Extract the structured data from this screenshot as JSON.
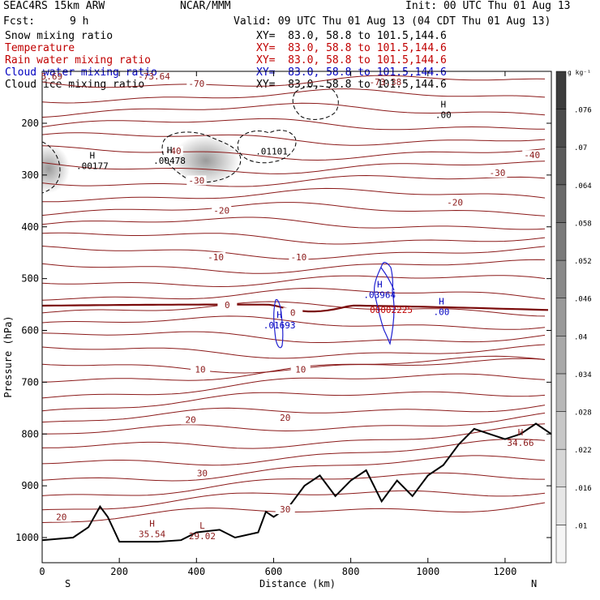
{
  "header": {
    "model": "SEAC4RS 15km ARW",
    "center": "NCAR/MMM",
    "init": "Init: 00 UTC Thu 01 Aug 13",
    "fcst_label": "Fcst:",
    "fcst_value": "9 h",
    "valid": "Valid: 09 UTC Thu 01 Aug 13 (04 CDT Thu 01 Aug 13)"
  },
  "fields": [
    {
      "name": "Snow mixing ratio",
      "xy": "XY=  83.0, 58.8 to 101.5,144.6",
      "color": "#000000"
    },
    {
      "name": "Temperature",
      "xy": "XY=  83.0, 58.8 to 101.5,144.6",
      "color": "#c00000"
    },
    {
      "name": "Rain water mixing ratio",
      "xy": "XY=  83.0, 58.8 to 101.5,144.6",
      "color": "#c00000"
    },
    {
      "name": "Cloud water mixing ratio",
      "xy": "XY=  83.0, 58.8 to 101.5,144.6",
      "color": "#0000c0"
    },
    {
      "name": "Cloud ice mixing ratio",
      "xy": "XY=  83.0, 58.8 to 101.5,144.6",
      "color": "#000000"
    }
  ],
  "colorbar": {
    "unit": "g kg⁻¹",
    "ticks": [
      ".01",
      ".016",
      ".022",
      ".028",
      ".034",
      ".04",
      ".046",
      ".052",
      ".058",
      ".064",
      ".07",
      ".076"
    ]
  },
  "chart_data": {
    "type": "contour",
    "xlabel": "Distance (km)",
    "ylabel": "Pressure (hPa)",
    "xlim": [
      0,
      1320
    ],
    "ylim": [
      1050,
      100
    ],
    "x_ticks": [
      0,
      200,
      400,
      600,
      800,
      1000,
      1200
    ],
    "y_ticks": [
      200,
      300,
      400,
      500,
      600,
      700,
      800,
      900,
      1000
    ],
    "x_end_labels": {
      "left": "S",
      "right": "N"
    },
    "temperature_contours": [
      {
        "label": "-70",
        "x": 400,
        "p": 128
      },
      {
        "label": "-40",
        "x": 1270,
        "p": 266
      },
      {
        "label": "-30",
        "x": 1180,
        "p": 300
      },
      {
        "label": "-20",
        "x": 1070,
        "p": 357
      },
      {
        "label": "-40",
        "x": 340,
        "p": 258
      },
      {
        "label": "-30",
        "x": 400,
        "p": 315
      },
      {
        "label": "-20",
        "x": 465,
        "p": 373
      },
      {
        "label": "-10",
        "x": 450,
        "p": 463
      },
      {
        "label": "-10",
        "x": 665,
        "p": 463
      },
      {
        "label": "0",
        "x": 480,
        "p": 555
      },
      {
        "label": "0",
        "x": 650,
        "p": 570
      },
      {
        "label": "10",
        "x": 410,
        "p": 680
      },
      {
        "label": "10",
        "x": 670,
        "p": 680
      },
      {
        "label": "20",
        "x": 385,
        "p": 777
      },
      {
        "label": "20",
        "x": 630,
        "p": 773
      },
      {
        "label": "30",
        "x": 415,
        "p": 880
      },
      {
        "label": "30",
        "x": 630,
        "p": 950
      },
      {
        "label": "20",
        "x": 50,
        "p": 965
      }
    ],
    "annotations": [
      {
        "mark": "H",
        "value": ".00177",
        "x": 130,
        "p": 285,
        "color": "#000000"
      },
      {
        "mark": "H",
        "value": ".00478",
        "x": 330,
        "p": 275,
        "color": "#000000"
      },
      {
        "mark": "",
        "value": ".01101",
        "x": 595,
        "p": 257,
        "color": "#000000"
      },
      {
        "mark": "H",
        "value": ".00",
        "x": 1040,
        "p": 187,
        "color": "#000000"
      },
      {
        "mark": "H",
        "value": ".01693",
        "x": 615,
        "p": 593,
        "color": "#0000c0"
      },
      {
        "mark": "H",
        "value": ".03964",
        "x": 875,
        "p": 534,
        "color": "#0000c0"
      },
      {
        "mark": "H",
        "value": ".00",
        "x": 1035,
        "p": 567,
        "color": "#0000c0"
      },
      {
        "mark": "",
        "value": "00002225",
        "x": 905,
        "p": 563,
        "color": "#c00000"
      },
      {
        "mark": "H",
        "value": "35.54",
        "x": 285,
        "p": 996,
        "color": "#8b1a1a"
      },
      {
        "mark": "L",
        "value": "29.02",
        "x": 415,
        "p": 1000,
        "color": "#8b1a1a"
      },
      {
        "mark": "H",
        "value": "34.66",
        "x": 1240,
        "p": 820,
        "color": "#8b1a1a"
      },
      {
        "mark": "",
        "value": "-73.64",
        "x": 290,
        "p": 112,
        "color": "#8b1a1a"
      },
      {
        "mark": "",
        "value": "-73.38",
        "x": 890,
        "p": 123,
        "color": "#8b1a1a"
      },
      {
        "mark": "",
        "value": "5.69",
        "x": 25,
        "p": 112,
        "color": "#8b1a1a"
      }
    ]
  }
}
